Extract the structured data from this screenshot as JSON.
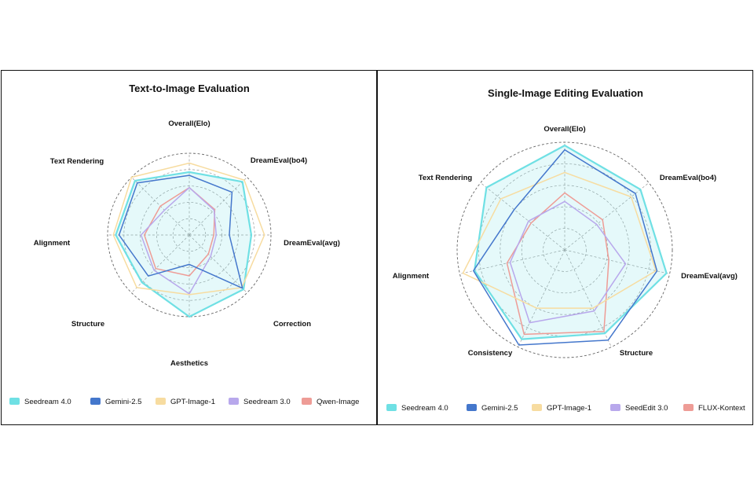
{
  "chart_data": [
    {
      "type": "radar",
      "title": "Text-to-Image Evaluation",
      "axes": [
        "Overall(Elo)",
        "DreamEval(bo4)",
        "DreamEval(avg)",
        "Correction",
        "Aesthetics",
        "Structure",
        "Alignment",
        "Text Rendering"
      ],
      "range": [
        0,
        1
      ],
      "grid_levels": 5,
      "series": [
        {
          "name": "Seedream 4.0",
          "color": "#6fe0e4",
          "fill": true,
          "values": [
            0.77,
            0.92,
            0.76,
            0.94,
            1.0,
            0.82,
            0.9,
            0.94
          ]
        },
        {
          "name": "Gemini-2.5",
          "color": "#4477cc",
          "values": [
            0.73,
            0.74,
            0.49,
            0.92,
            0.36,
            0.71,
            0.86,
            0.9
          ]
        },
        {
          "name": "GPT-Image-1",
          "color": "#f7dca0",
          "values": [
            0.88,
            0.95,
            0.92,
            0.91,
            0.73,
            0.91,
            0.93,
            1.0
          ]
        },
        {
          "name": "Seedream 3.0",
          "color": "#b8a8ec",
          "values": [
            0.58,
            0.43,
            0.33,
            0.37,
            0.72,
            0.61,
            0.59,
            0.43
          ]
        },
        {
          "name": "Qwen-Image",
          "color": "#ee9c96",
          "values": [
            0.58,
            0.44,
            0.3,
            0.33,
            0.5,
            0.58,
            0.55,
            0.5
          ]
        }
      ],
      "legend": "bottom"
    },
    {
      "type": "radar",
      "title": "Single-Image Editing Evaluation",
      "axes": [
        "Overall(Elo)",
        "DreamEval(bo4)",
        "DreamEval(avg)",
        "Structure",
        "Consistency",
        "Alignment",
        "Text Rendering"
      ],
      "range": [
        0,
        1
      ],
      "grid_levels": 5,
      "series": [
        {
          "name": "Seedream 4.0",
          "color": "#6fe0e4",
          "fill": true,
          "values": [
            0.97,
            0.9,
            0.97,
            0.86,
            0.92,
            0.86,
            0.93
          ]
        },
        {
          "name": "Gemini-2.5",
          "color": "#4477cc",
          "values": [
            0.93,
            0.84,
            0.88,
            0.93,
            0.98,
            0.87,
            0.6
          ]
        },
        {
          "name": "GPT-Image-1",
          "color": "#f7dca0",
          "values": [
            0.72,
            0.79,
            0.87,
            0.6,
            0.6,
            0.97,
            0.76
          ]
        },
        {
          "name": "SeedEdit 3.0",
          "color": "#b8a8ec",
          "values": [
            0.45,
            0.38,
            0.58,
            0.63,
            0.75,
            0.52,
            0.43
          ]
        },
        {
          "name": "FLUX-Kontext",
          "color": "#ee9c96",
          "values": [
            0.53,
            0.45,
            0.42,
            0.84,
            0.87,
            0.55,
            0.4
          ]
        }
      ],
      "legend": "bottom"
    }
  ]
}
